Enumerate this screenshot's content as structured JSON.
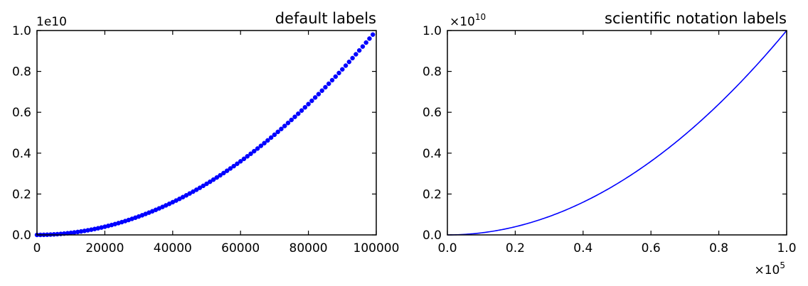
{
  "chart_data": [
    {
      "type": "scatter",
      "title": "default labels",
      "xlabel": "",
      "ylabel": "",
      "x_ticks": [
        "0",
        "20000",
        "40000",
        "60000",
        "80000",
        "100000"
      ],
      "y_ticks": [
        "0.0",
        "0.2",
        "0.4",
        "0.6",
        "0.8",
        "1.0"
      ],
      "x_tick_values": [
        0,
        20000,
        40000,
        60000,
        80000,
        100000
      ],
      "y_tick_values": [
        0,
        0.2,
        0.4,
        0.6,
        0.8,
        1.0
      ],
      "y_offset": "1e10",
      "xlim": [
        0,
        100000
      ],
      "ylim": [
        0,
        1.0
      ],
      "grid": false,
      "series": [
        {
          "marker": "circle",
          "color": "#0000ff",
          "x_start": 0,
          "x_end": 99000,
          "x_step": 1000,
          "formula": "y = x^2 / 1e10"
        }
      ]
    },
    {
      "type": "line",
      "title": "scientific notation labels",
      "xlabel": "",
      "ylabel": "",
      "x_ticks": [
        "0.0",
        "0.2",
        "0.4",
        "0.6",
        "0.8",
        "1.0"
      ],
      "y_ticks": [
        "0.0",
        "0.2",
        "0.4",
        "0.6",
        "0.8",
        "1.0"
      ],
      "x_tick_values": [
        0,
        0.2,
        0.4,
        0.6,
        0.8,
        1.0
      ],
      "y_tick_values": [
        0,
        0.2,
        0.4,
        0.6,
        0.8,
        1.0
      ],
      "x_offset_base": "×10",
      "x_offset_exp": "5",
      "y_offset_base": "×10",
      "y_offset_exp": "10",
      "xlim": [
        0,
        1.0
      ],
      "ylim": [
        0,
        1.0
      ],
      "grid": false,
      "series": [
        {
          "color": "#0000ff",
          "formula": "y = x^2"
        }
      ]
    }
  ]
}
